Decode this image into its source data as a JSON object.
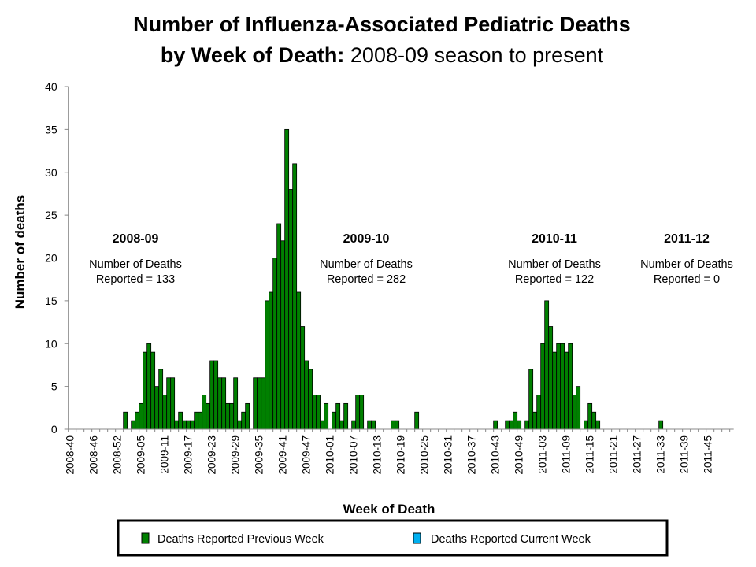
{
  "chart_data": {
    "type": "bar",
    "title": "Number of Influenza-Associated Pediatric Deaths",
    "title_line2_bold": "by Week of Death:",
    "title_line2_normal": " 2008-09 season to present",
    "xlabel": "Week of Death",
    "ylabel": "Number of deaths",
    "ylim": [
      0,
      40
    ],
    "yticks": [
      "0",
      "5",
      "10",
      "15",
      "20",
      "25",
      "30",
      "35",
      "40"
    ],
    "x_start_week": "2008-40",
    "x_tick_labels": [
      "2008-40",
      "2008-46",
      "2008-52",
      "2009-05",
      "2009-11",
      "2009-17",
      "2009-23",
      "2009-29",
      "2009-35",
      "2009-41",
      "2009-47",
      "2010-01",
      "2010-07",
      "2010-13",
      "2010-19",
      "2010-25",
      "2010-31",
      "2010-37",
      "2010-43",
      "2010-49",
      "2011-03",
      "2011-09",
      "2011-15",
      "2011-21",
      "2011-27",
      "2011-33",
      "2011-39",
      "2011-45"
    ],
    "series": [
      {
        "name": "Deaths Reported Previous Week",
        "color": "#008000",
        "values": [
          0,
          0,
          0,
          0,
          0,
          0,
          0,
          0,
          0,
          0,
          0,
          0,
          0,
          0,
          2,
          0,
          1,
          2,
          3,
          9,
          10,
          9,
          5,
          7,
          4,
          6,
          6,
          1,
          2,
          1,
          1,
          1,
          2,
          2,
          4,
          3,
          8,
          8,
          6,
          6,
          3,
          3,
          6,
          1,
          2,
          3,
          0,
          6,
          6,
          6,
          15,
          16,
          20,
          24,
          22,
          35,
          28,
          31,
          16,
          12,
          8,
          7,
          4,
          4,
          1,
          3,
          0,
          2,
          3,
          1,
          3,
          0,
          1,
          4,
          4,
          0,
          1,
          1,
          0,
          0,
          0,
          0,
          1,
          1,
          0,
          0,
          0,
          0,
          2,
          0,
          0,
          0,
          0,
          0,
          0,
          0,
          0,
          0,
          0,
          0,
          0,
          0,
          0,
          0,
          0,
          0,
          0,
          0,
          1,
          0,
          0,
          1,
          1,
          2,
          1,
          0,
          1,
          7,
          2,
          4,
          10,
          15,
          12,
          9,
          10,
          10,
          9,
          10,
          4,
          5,
          0,
          1,
          3,
          2,
          1,
          0,
          0,
          0,
          0,
          0,
          0,
          0,
          0,
          0,
          0,
          0,
          0,
          0,
          0,
          0,
          1,
          0,
          0,
          0,
          0,
          0,
          0,
          0,
          0,
          0,
          0,
          0,
          0,
          0,
          0,
          0,
          0,
          0,
          0
        ]
      },
      {
        "name": "Deaths Reported Current Week",
        "color": "#00B0F0",
        "values": []
      }
    ],
    "annotations": [
      {
        "season": "2008-09",
        "line1": "Number of Deaths",
        "line2": "Reported = 133"
      },
      {
        "season": "2009-10",
        "line1": "Number of Deaths",
        "line2": "Reported = 282"
      },
      {
        "season": "2010-11",
        "line1": "Number of Deaths",
        "line2": "Reported = 122"
      },
      {
        "season": "2011-12",
        "line1": "Number of Deaths",
        "line2": "Reported = 0"
      }
    ],
    "grid": false,
    "legend_position": "bottom"
  }
}
